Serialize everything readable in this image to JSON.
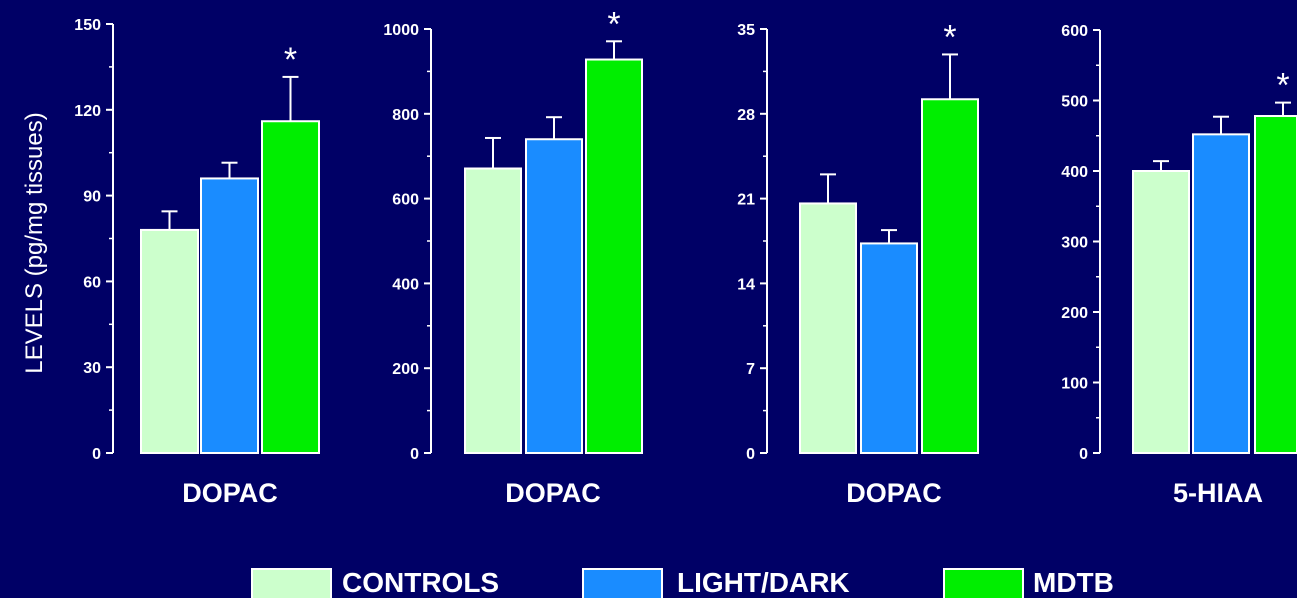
{
  "chart_data": [
    {
      "type": "bar",
      "categories": [
        "DOPAC"
      ],
      "ylabel": "LEVELS (pg/mg tissues)",
      "ylim": [
        0,
        150
      ],
      "yticks": [
        "0",
        "30",
        "60",
        "90",
        "120",
        "150"
      ],
      "series": [
        {
          "name": "CONTROLS",
          "values": [
            78
          ],
          "errors": [
            6.5
          ]
        },
        {
          "name": "LIGHT/DARK",
          "values": [
            96
          ],
          "errors": [
            5.5
          ]
        },
        {
          "name": "MDTB",
          "values": [
            116
          ],
          "errors": [
            15.5
          ]
        }
      ],
      "annotations": [
        {
          "series": "MDTB",
          "text": "*"
        }
      ],
      "grid": false
    },
    {
      "type": "bar",
      "categories": [
        "DOPAC"
      ],
      "ylim": [
        0,
        1000
      ],
      "yticks": [
        "0",
        "200",
        "400",
        "600",
        "800",
        "1000"
      ],
      "series": [
        {
          "name": "CONTROLS",
          "values": [
            671
          ],
          "errors": [
            72
          ]
        },
        {
          "name": "LIGHT/DARK",
          "values": [
            740
          ],
          "errors": [
            52
          ]
        },
        {
          "name": "MDTB",
          "values": [
            928
          ],
          "errors": [
            43
          ]
        }
      ],
      "annotations": [
        {
          "series": "MDTB",
          "text": "*"
        }
      ],
      "grid": false
    },
    {
      "type": "bar",
      "categories": [
        "DOPAC"
      ],
      "ylim": [
        0,
        35
      ],
      "yticks": [
        "0",
        "7",
        "14",
        "21",
        "28",
        "35"
      ],
      "series": [
        {
          "name": "CONTROLS",
          "values": [
            20.6
          ],
          "errors": [
            2.4
          ]
        },
        {
          "name": "LIGHT/DARK",
          "values": [
            17.3
          ],
          "errors": [
            1.1
          ]
        },
        {
          "name": "MDTB",
          "values": [
            29.2
          ],
          "errors": [
            3.7
          ]
        }
      ],
      "annotations": [
        {
          "series": "MDTB",
          "text": "*"
        }
      ],
      "grid": false
    },
    {
      "type": "bar",
      "categories": [
        "5-HIAA"
      ],
      "ylim": [
        0,
        600
      ],
      "yticks": [
        "0",
        "100",
        "200",
        "300",
        "400",
        "500",
        "600"
      ],
      "series": [
        {
          "name": "CONTROLS",
          "values": [
            400
          ],
          "errors": [
            14
          ]
        },
        {
          "name": "LIGHT/DARK",
          "values": [
            452
          ],
          "errors": [
            25
          ]
        },
        {
          "name": "MDTB",
          "values": [
            478
          ],
          "errors": [
            19
          ]
        }
      ],
      "annotations": [
        {
          "series": "MDTB",
          "text": "*"
        }
      ],
      "grid": false
    }
  ],
  "legend": {
    "placement": "bottom",
    "items": [
      {
        "label": "CONTROLS",
        "color": "#ccffcc"
      },
      {
        "label": "LIGHT/DARK",
        "color": "#1a8cff"
      },
      {
        "label": "MDTB",
        "color": "#00ee00"
      }
    ]
  },
  "colors": {
    "background": "#000066",
    "axis": "#ffffff",
    "controls": "#ccffcc",
    "light_dark": "#1a8cff",
    "mdtb": "#00ee00"
  }
}
